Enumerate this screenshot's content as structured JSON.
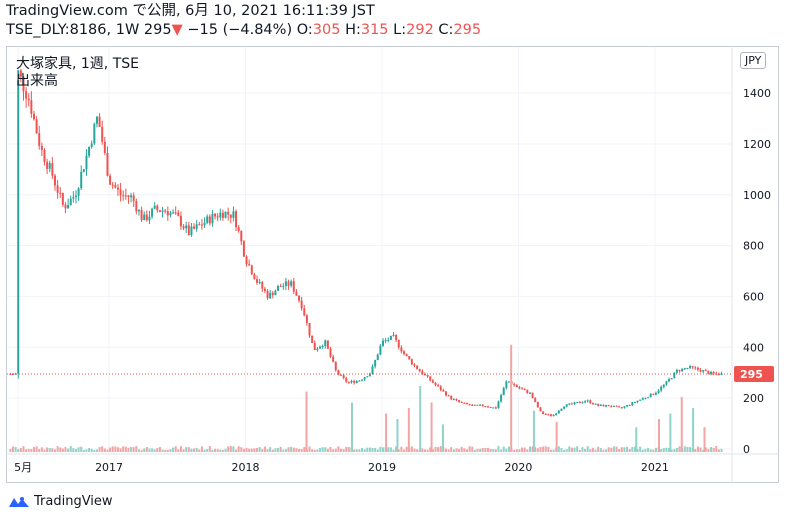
{
  "header": {
    "source": "TradingView.com で公開, 6月 10, 2021 16:11:39 JST",
    "symbol": "TSE_DLY:8186, 1W",
    "last": "295",
    "change_arrow": "▼",
    "change": "−15 (−4.84%)",
    "o_label": "O:",
    "o_value": "305",
    "h_label": "H:",
    "h_value": "315",
    "l_label": "L:",
    "l_value": "292",
    "c_label": "C:",
    "c_value": "295"
  },
  "legend": {
    "title": "大塚家具, 1週, TSE",
    "volume": "出来高"
  },
  "currency": "JPY",
  "footer": {
    "brand": "TradingView"
  },
  "colors": {
    "up": "#26a69a",
    "down": "#ef5350",
    "up_vol": "#8fd3c9",
    "down_vol": "#f2a5a3",
    "grid": "#f0f3fa"
  },
  "chart_data": {
    "type": "candlestick",
    "x_ticks": [
      "5月",
      "2017",
      "2018",
      "2019",
      "2020",
      "2021"
    ],
    "y_ticks": [
      0,
      200,
      400,
      600,
      800,
      1000,
      1200,
      1400
    ],
    "ylim": [
      -20,
      1550
    ],
    "last_price_label": "295",
    "price_points": [
      [
        "2016-05",
        1480
      ],
      [
        "2016-06",
        1370
      ],
      [
        "2016-07",
        1180
      ],
      [
        "2016-08",
        1080
      ],
      [
        "2016-09",
        950
      ],
      [
        "2016-10",
        1000
      ],
      [
        "2016-11",
        1150
      ],
      [
        "2016-12",
        1310
      ],
      [
        "2017-01",
        1060
      ],
      [
        "2017-02",
        1000
      ],
      [
        "2017-03",
        990
      ],
      [
        "2017-04",
        900
      ],
      [
        "2017-05",
        940
      ],
      [
        "2017-06",
        940
      ],
      [
        "2017-07",
        910
      ],
      [
        "2017-08",
        850
      ],
      [
        "2017-09",
        880
      ],
      [
        "2017-10",
        910
      ],
      [
        "2017-11",
        930
      ],
      [
        "2017-12",
        920
      ],
      [
        "2018-01",
        750
      ],
      [
        "2018-02",
        660
      ],
      [
        "2018-03",
        600
      ],
      [
        "2018-04",
        640
      ],
      [
        "2018-05",
        650
      ],
      [
        "2018-06",
        560
      ],
      [
        "2018-07",
        390
      ],
      [
        "2018-08",
        420
      ],
      [
        "2018-09",
        300
      ],
      [
        "2018-10",
        260
      ],
      [
        "2018-11",
        270
      ],
      [
        "2018-12",
        300
      ],
      [
        "2019-01",
        420
      ],
      [
        "2019-02",
        440
      ],
      [
        "2019-03",
        370
      ],
      [
        "2019-04",
        320
      ],
      [
        "2019-05",
        280
      ],
      [
        "2019-06",
        240
      ],
      [
        "2019-07",
        200
      ],
      [
        "2019-08",
        180
      ],
      [
        "2019-09",
        170
      ],
      [
        "2019-10",
        170
      ],
      [
        "2019-11",
        160
      ],
      [
        "2019-12",
        270
      ],
      [
        "2020-01",
        240
      ],
      [
        "2020-02",
        220
      ],
      [
        "2020-03",
        140
      ],
      [
        "2020-04",
        130
      ],
      [
        "2020-05",
        170
      ],
      [
        "2020-06",
        180
      ],
      [
        "2020-07",
        190
      ],
      [
        "2020-08",
        170
      ],
      [
        "2020-09",
        170
      ],
      [
        "2020-10",
        160
      ],
      [
        "2020-11",
        180
      ],
      [
        "2020-12",
        200
      ],
      [
        "2021-01",
        220
      ],
      [
        "2021-02",
        260
      ],
      [
        "2021-03",
        310
      ],
      [
        "2021-04",
        320
      ],
      [
        "2021-05",
        310
      ],
      [
        "2021-06",
        295
      ]
    ],
    "volume_spikes": [
      [
        "2018-06",
        220
      ],
      [
        "2018-10",
        180
      ],
      [
        "2019-01",
        140
      ],
      [
        "2019-02",
        120
      ],
      [
        "2019-03",
        160
      ],
      [
        "2019-04",
        240
      ],
      [
        "2019-05",
        180
      ],
      [
        "2019-06",
        100
      ],
      [
        "2019-12",
        390
      ],
      [
        "2020-02",
        150
      ],
      [
        "2020-04",
        110
      ],
      [
        "2020-11",
        90
      ],
      [
        "2021-01",
        120
      ],
      [
        "2021-02",
        140
      ],
      [
        "2021-03",
        200
      ],
      [
        "2021-04",
        160
      ],
      [
        "2021-05",
        90
      ]
    ]
  }
}
